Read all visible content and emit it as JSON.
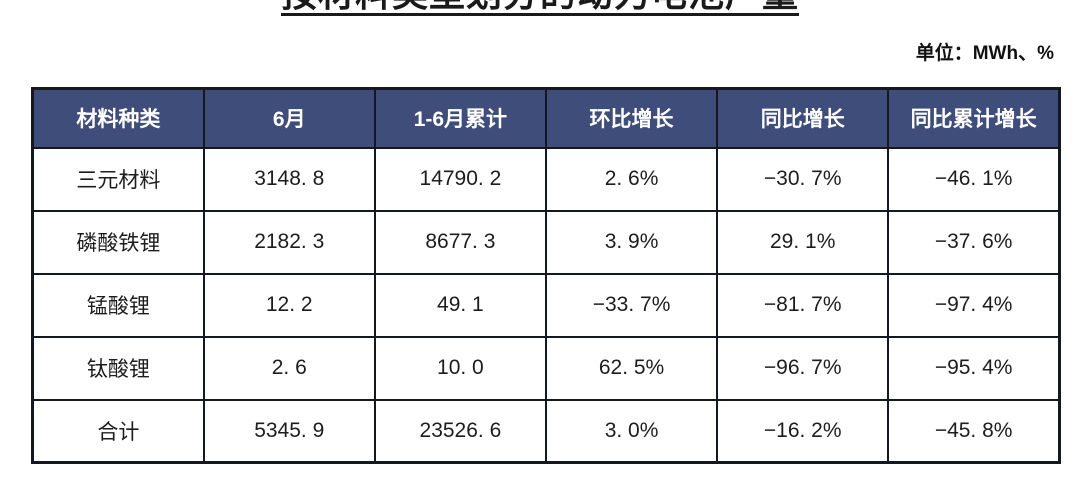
{
  "title": "按材料类型划分的动力电池产量",
  "unit_label": "单位：MWh、%",
  "colors": {
    "header_bg": "#3f4d7b",
    "header_text": "#ffffff",
    "border": "#15181f",
    "body_text": "#1d1d1d"
  },
  "table": {
    "headers": [
      "材料种类",
      "6月",
      "1-6月累计",
      "环比增长",
      "同比增长",
      "同比累计增长"
    ],
    "rows": [
      [
        "三元材料",
        "3148. 8",
        "14790. 2",
        "2. 6%",
        "−30. 7%",
        "−46. 1%"
      ],
      [
        "磷酸铁锂",
        "2182. 3",
        "8677. 3",
        "3. 9%",
        "29. 1%",
        "−37. 6%"
      ],
      [
        "锰酸锂",
        "12. 2",
        "49. 1",
        "−33. 7%",
        "−81. 7%",
        "−97. 4%"
      ],
      [
        "钛酸锂",
        "2. 6",
        "10. 0",
        "62. 5%",
        "−96. 7%",
        "−95. 4%"
      ],
      [
        "合计",
        "5345. 9",
        "23526. 6",
        "3. 0%",
        "−16. 2%",
        "−45. 8%"
      ]
    ]
  },
  "chart_data": {
    "type": "table",
    "title": "按材料类型划分的动力电池产量",
    "unit": "MWh、%",
    "columns": [
      "材料种类",
      "6月",
      "1-6月累计",
      "环比增长",
      "同比增长",
      "同比累计增长"
    ],
    "rows": [
      {
        "material": "三元材料",
        "june_mwh": 3148.8,
        "jan_jun_cumulative_mwh": 14790.2,
        "mom_growth_pct": 2.6,
        "yoy_growth_pct": -30.7,
        "yoy_cumulative_growth_pct": -46.1
      },
      {
        "material": "磷酸铁锂",
        "june_mwh": 2182.3,
        "jan_jun_cumulative_mwh": 8677.3,
        "mom_growth_pct": 3.9,
        "yoy_growth_pct": 29.1,
        "yoy_cumulative_growth_pct": -37.6
      },
      {
        "material": "锰酸锂",
        "june_mwh": 12.2,
        "jan_jun_cumulative_mwh": 49.1,
        "mom_growth_pct": -33.7,
        "yoy_growth_pct": -81.7,
        "yoy_cumulative_growth_pct": -97.4
      },
      {
        "material": "钛酸锂",
        "june_mwh": 2.6,
        "jan_jun_cumulative_mwh": 10.0,
        "mom_growth_pct": 62.5,
        "yoy_growth_pct": -96.7,
        "yoy_cumulative_growth_pct": -95.4
      },
      {
        "material": "合计",
        "june_mwh": 5345.9,
        "jan_jun_cumulative_mwh": 23526.6,
        "mom_growth_pct": 3.0,
        "yoy_growth_pct": -16.2,
        "yoy_cumulative_growth_pct": -45.8
      }
    ]
  }
}
